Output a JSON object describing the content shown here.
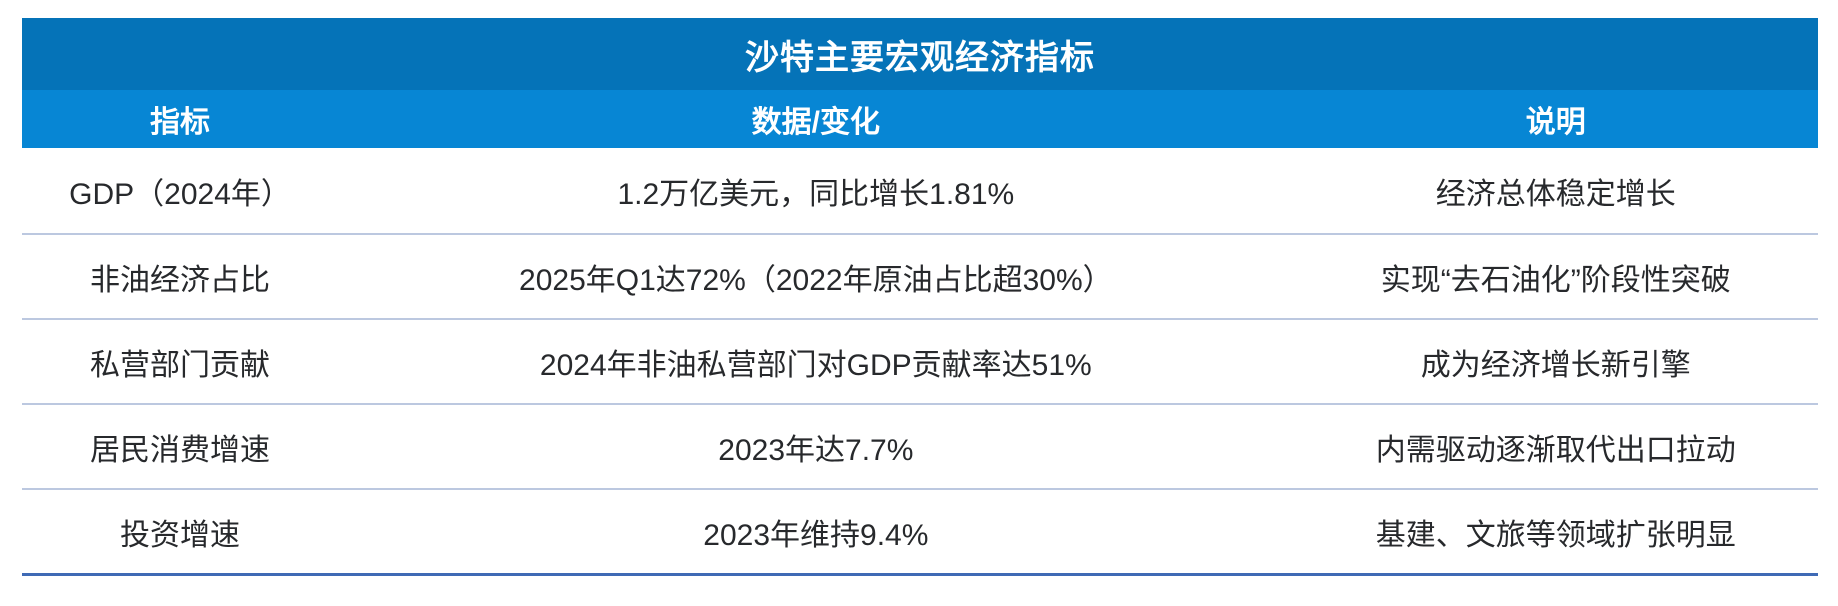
{
  "table": {
    "title": "沙特主要宏观经济指标",
    "columns": [
      "指标",
      "数据/变化",
      "说明"
    ],
    "rows": [
      [
        "GDP（2024年）",
        "1.2万亿美元，同比增长1.81%",
        "经济总体稳定增长"
      ],
      [
        "非油经济占比",
        "2025年Q1达72%（2022年原油占比超30%）",
        "实现“去石油化”阶段性突破"
      ],
      [
        "私营部门贡献",
        "2024年非油私营部门对GDP贡献率达51%",
        "成为经济增长新引擎"
      ],
      [
        "居民消费增速",
        "2023年达7.7%",
        "内需驱动逐渐取代出口拉动"
      ],
      [
        "投资增速",
        "2023年维持9.4%",
        "基建、文旅等领域扩张明显"
      ]
    ]
  },
  "colors": {
    "title_bg": "#0573B8",
    "header_bg": "#0786D4",
    "divider": "#BCC8E0",
    "bottom_border": "#3F6AB5",
    "body_text": "#27292C"
  },
  "chart_data": {
    "type": "table",
    "title": "沙特主要宏观经济指标",
    "columns": [
      "指标",
      "数据/变化",
      "说明"
    ],
    "rows": [
      {
        "指标": "GDP（2024年）",
        "数据/变化": "1.2万亿美元，同比增长1.81%",
        "说明": "经济总体稳定增长"
      },
      {
        "指标": "非油经济占比",
        "数据/变化": "2025年Q1达72%（2022年原油占比超30%）",
        "说明": "实现“去石油化”阶段性突破"
      },
      {
        "指标": "私营部门贡献",
        "数据/变化": "2024年非油私营部门对GDP贡献率达51%",
        "说明": "成为经济增长新引擎"
      },
      {
        "指标": "居民消费增速",
        "数据/变化": "2023年达7.7%",
        "说明": "内需驱动逐渐取代出口拉动"
      },
      {
        "指标": "投资增速",
        "数据/变化": "2023年维持9.4%",
        "说明": "基建、文旅等领域扩张明显"
      }
    ],
    "key_values": {
      "gdp_2024_trillion_usd": 1.2,
      "gdp_2024_yoy_growth_pct": 1.81,
      "non_oil_share_2025q1_pct": 72,
      "crude_share_2022_pct_over": 30,
      "private_sector_gdp_contribution_2024_pct": 51,
      "consumption_growth_2023_pct": 7.7,
      "investment_growth_2023_pct": 9.4
    }
  }
}
